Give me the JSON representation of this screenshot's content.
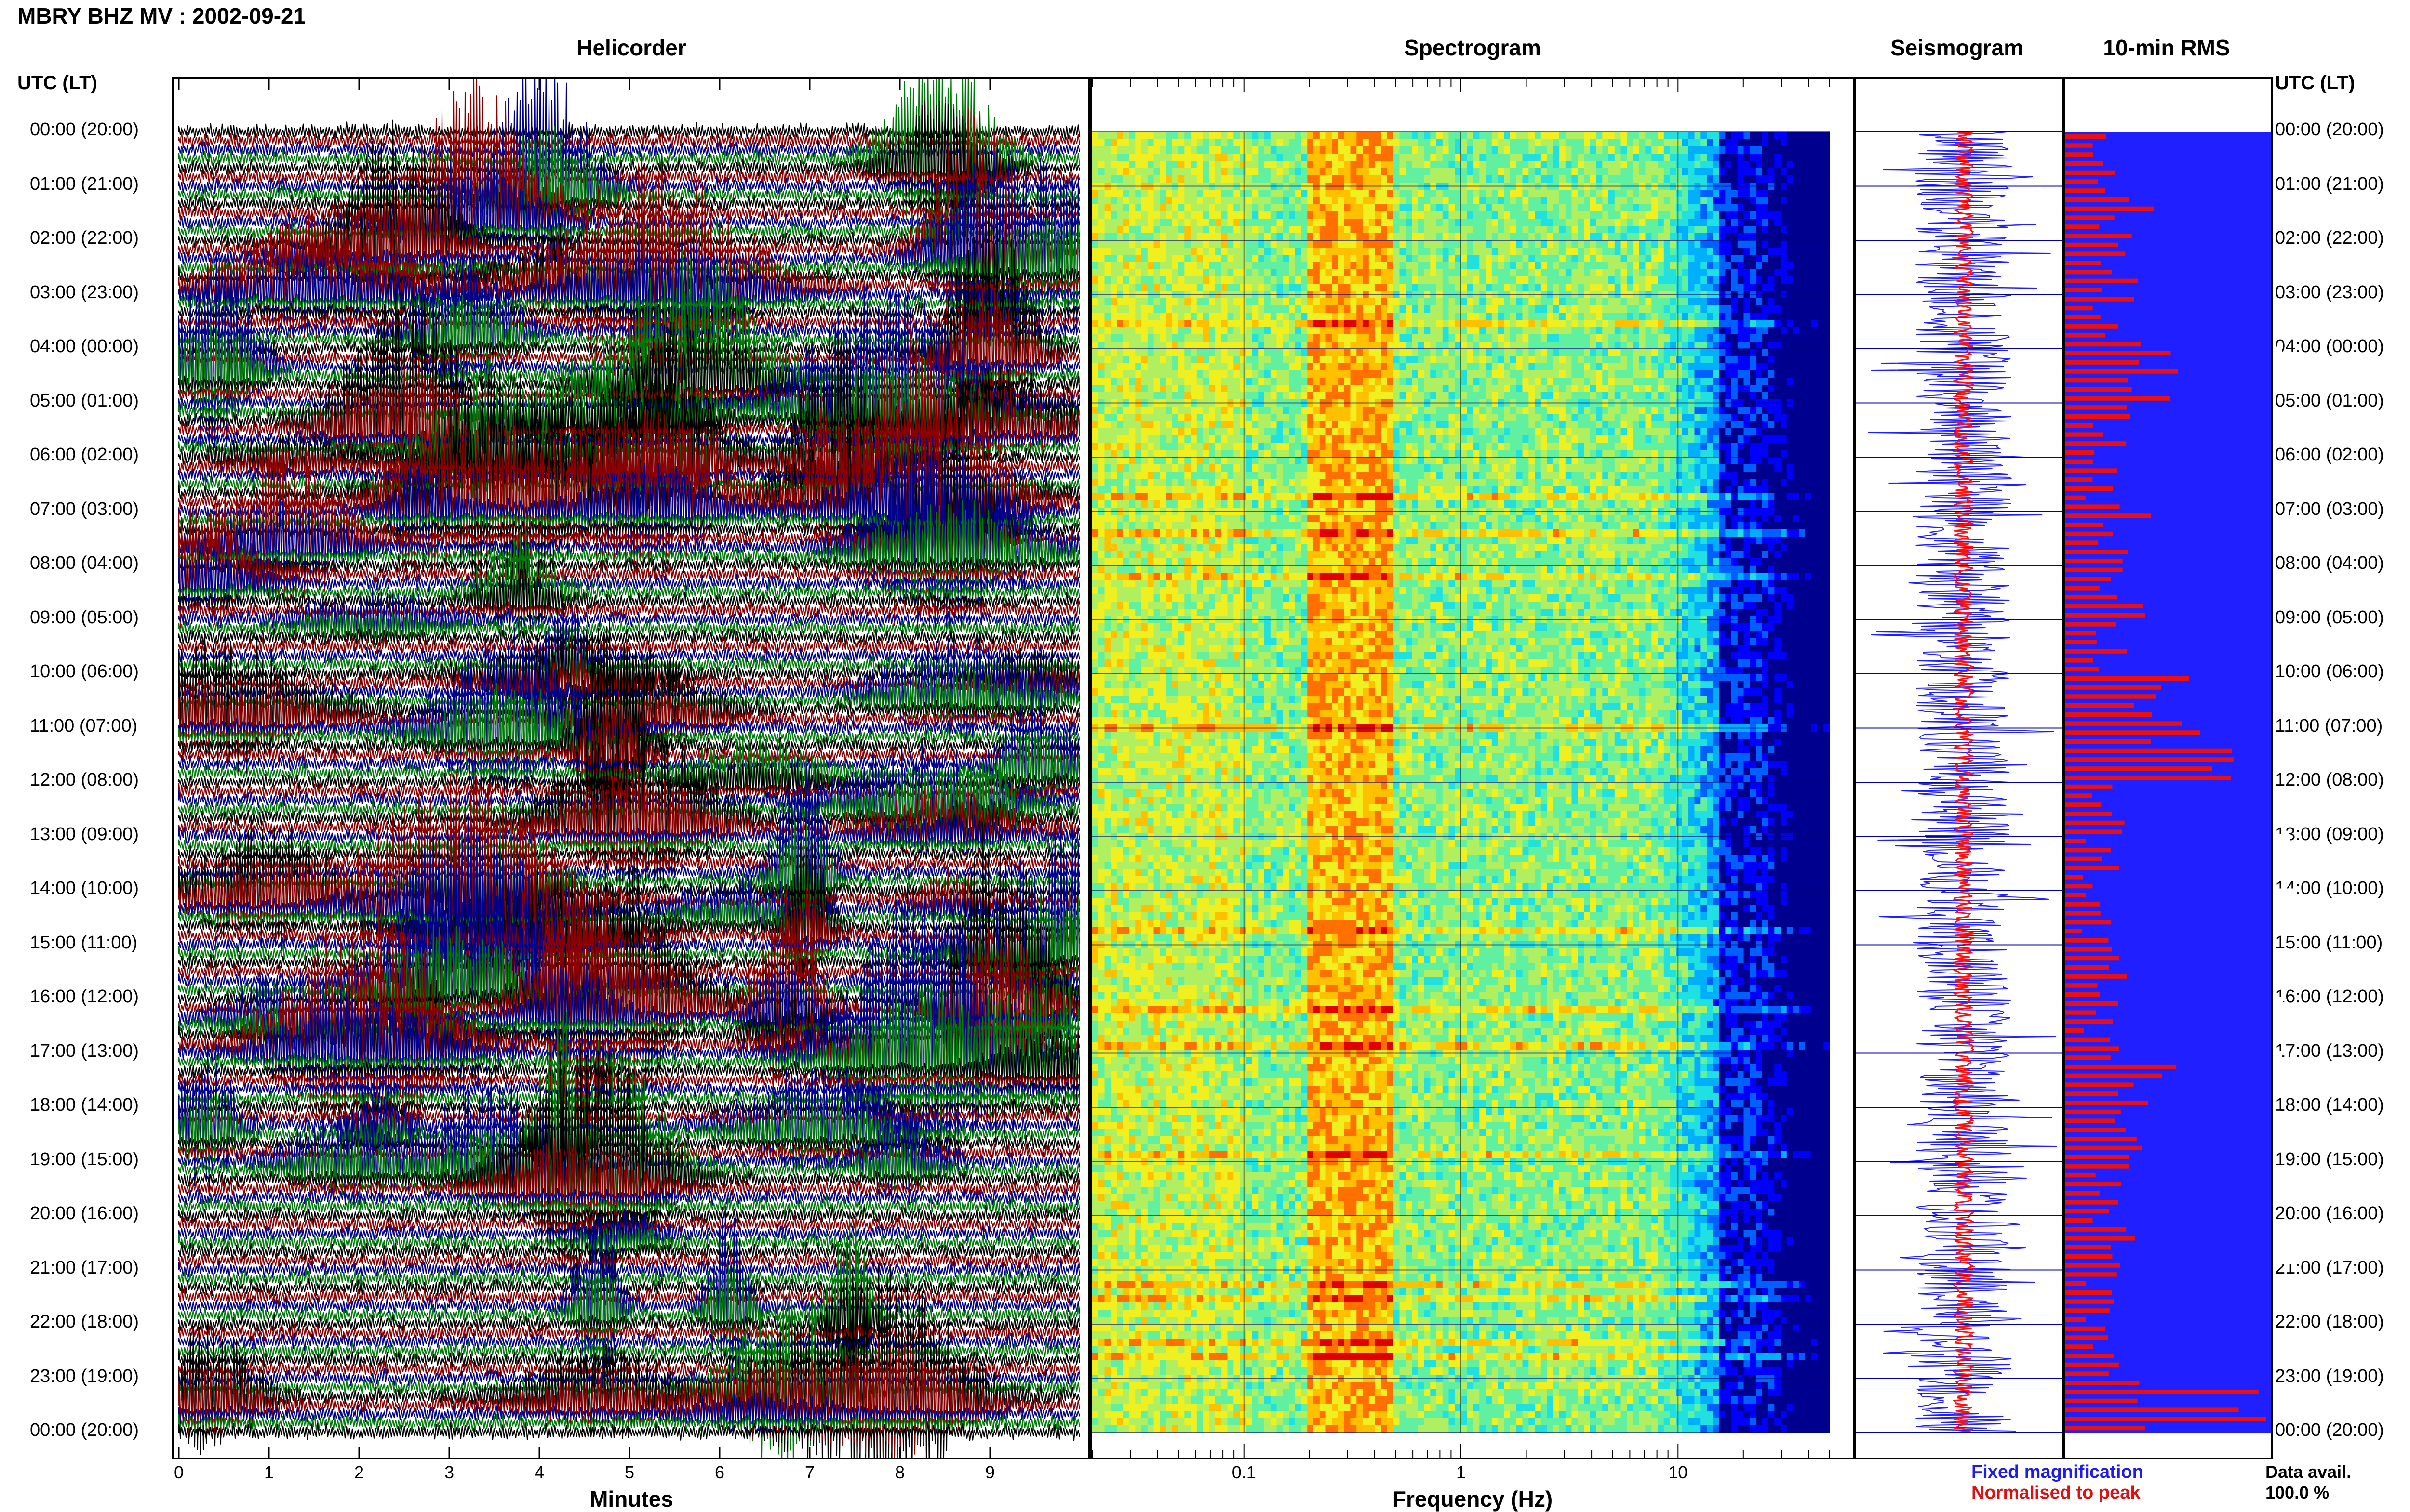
{
  "page": {
    "title": "MBRY BHZ MV : 2002-09-21"
  },
  "panels": {
    "helicorder": "Helicorder",
    "spectrogram": "Spectrogram",
    "seismogram": "Seismogram",
    "rms": "10-min RMS"
  },
  "axes": {
    "time_header": "UTC (LT)",
    "minutes_label": "Minutes",
    "frequency_label": "Frequency (Hz)"
  },
  "legend": {
    "fixed": "Fixed magnification",
    "normalised": "Normalised to peak",
    "avail_label": "Data avail.",
    "avail_value": "100.0 %"
  },
  "colors": {
    "trace_black": "#000000",
    "trace_red": "#8b0000",
    "trace_blue": "#00008b",
    "trace_green": "#007a0a",
    "rms_background": "#1f1fff",
    "rms_bar": "#e81010",
    "seis_fixed": "#1f1fff",
    "seis_norm": "#ff1010"
  },
  "chart_data": [
    {
      "type": "line",
      "title": "Helicorder",
      "xlabel": "Minutes",
      "ylabel": "UTC (LT)",
      "xlim": [
        0,
        10
      ],
      "x_ticks": [
        "0",
        "1",
        "2",
        "3",
        "4",
        "5",
        "6",
        "7",
        "8",
        "9"
      ],
      "y_ticks": [
        "00:00 (20:00)",
        "01:00 (21:00)",
        "02:00 (22:00)",
        "03:00 (23:00)",
        "04:00 (00:00)",
        "05:00 (01:00)",
        "06:00 (02:00)",
        "07:00 (03:00)",
        "08:00 (04:00)",
        "09:00 (05:00)",
        "10:00 (06:00)",
        "11:00 (07:00)",
        "12:00 (08:00)",
        "13:00 (09:00)",
        "14:00 (10:00)",
        "15:00 (11:00)",
        "16:00 (12:00)",
        "17:00 (13:00)",
        "18:00 (14:00)",
        "19:00 (15:00)",
        "20:00 (16:00)",
        "21:00 (17:00)",
        "22:00 (18:00)",
        "23:00 (19:00)",
        "00:00 (20:00)"
      ],
      "series_colors_cycle": [
        "#000000",
        "#8b0000",
        "#00008b",
        "#007a0a"
      ]
    },
    {
      "type": "heatmap",
      "title": "Spectrogram",
      "xlabel": "Frequency (Hz)",
      "x_scale": "log",
      "xlim": [
        0.02,
        50
      ],
      "x_ticks": [
        "0.1",
        "1",
        "10"
      ],
      "dominant_band_hz": [
        0.2,
        0.5
      ],
      "secondary_band_hz": [
        2,
        5
      ],
      "rolloff_hz": 15
    },
    {
      "type": "line",
      "title": "Seismogram",
      "series": [
        {
          "name": "Fixed magnification"
        },
        {
          "name": "Normalised to peak"
        }
      ]
    },
    {
      "type": "bar",
      "title": "10-min RMS",
      "values_per_hour": [
        0.25,
        0.42,
        0.33,
        0.35,
        0.55,
        0.3,
        0.28,
        0.4,
        0.45,
        0.32,
        0.72,
        0.78,
        0.3,
        0.25,
        0.22,
        0.28,
        0.26,
        0.55,
        0.4,
        0.3,
        0.32,
        0.26,
        0.28,
        1.0
      ],
      "data_availability": "100.0 %"
    }
  ]
}
